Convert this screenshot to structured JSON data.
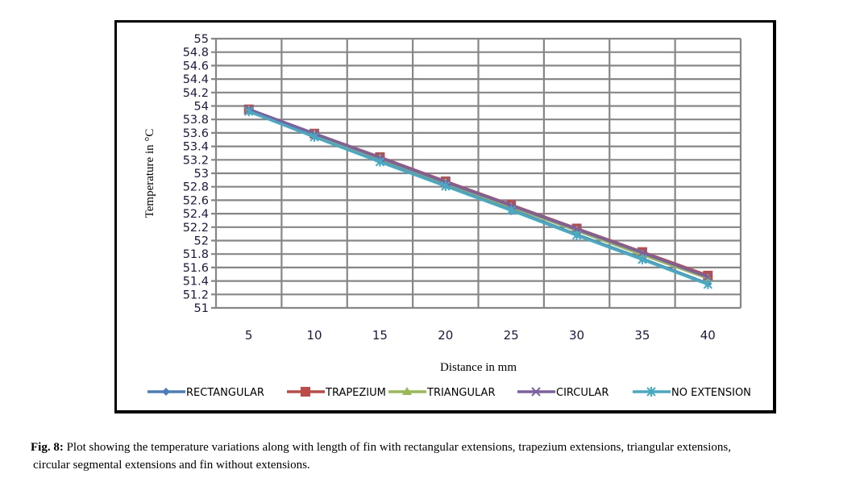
{
  "chart_data": {
    "type": "line",
    "title": "",
    "xlabel": "Distance in mm",
    "ylabel": "Temperature in °C",
    "categories": [
      "5",
      "10",
      "15",
      "20",
      "25",
      "30",
      "35",
      "40"
    ],
    "ylim": [
      51,
      55
    ],
    "yticks": [
      "51",
      "51.2",
      "51.4",
      "51.6",
      "51.8",
      "52",
      "52.2",
      "52.4",
      "52.6",
      "52.8",
      "53",
      "53.2",
      "53.4",
      "53.6",
      "53.8",
      "54",
      "54.2",
      "54.4",
      "54.6",
      "54.8",
      "55"
    ],
    "grid": true,
    "legend_position": "bottom",
    "series": [
      {
        "name": "RECTANGULAR",
        "color": "#4a7ebb",
        "marker": "diamond",
        "values": [
          53.92,
          53.55,
          53.18,
          52.82,
          52.46,
          52.09,
          51.73,
          51.36
        ]
      },
      {
        "name": "TRAPEZIUM",
        "color": "#be4b48",
        "marker": "square",
        "values": [
          53.95,
          53.59,
          53.24,
          52.88,
          52.53,
          52.18,
          51.83,
          51.48
        ]
      },
      {
        "name": "TRIANGULAR",
        "color": "#98b954",
        "marker": "triangle",
        "values": [
          53.94,
          53.58,
          53.22,
          52.86,
          52.5,
          52.15,
          51.79,
          51.44
        ]
      },
      {
        "name": "CIRCULAR",
        "color": "#7d60a0",
        "marker": "x",
        "values": [
          53.95,
          53.59,
          53.23,
          52.87,
          52.52,
          52.17,
          51.82,
          51.46
        ]
      },
      {
        "name": "NO EXTENSION",
        "color": "#46aac5",
        "marker": "star",
        "values": [
          53.92,
          53.54,
          53.17,
          52.81,
          52.45,
          52.08,
          51.72,
          51.35
        ]
      }
    ]
  },
  "caption": {
    "label": "Fig. 8:",
    "text_line1": "Plot showing the temperature variations along with length of fin with rectangular extensions, trapezium extensions, triangular extensions,",
    "text_line2": "circular segmental extensions and fin without extensions."
  }
}
